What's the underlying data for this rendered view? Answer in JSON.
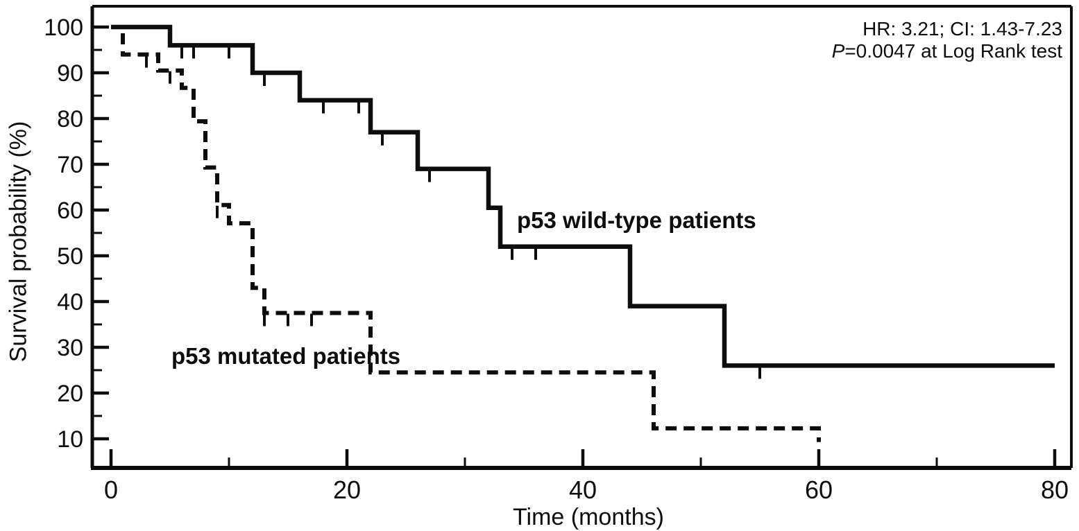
{
  "figure": {
    "background_color": "#ffffff",
    "ink_color": "#0d0d0d",
    "annotation": {
      "line1": "HR: 3.21; CI: 1.43-7.23",
      "p_italic": "P",
      "p_rest": "=0.0047 at Log Rank test"
    }
  },
  "chart_data": {
    "type": "line",
    "subtype": "kaplan_meier_step_survival",
    "title": "",
    "xlabel": "Time (months)",
    "ylabel": "Survival probability (%)",
    "xlim": [
      0,
      80
    ],
    "ylim": [
      4,
      102
    ],
    "grid": false,
    "legend_position": "inline-curve-labels",
    "x_major_ticks": [
      0,
      20,
      40,
      60,
      80
    ],
    "x_minor_ticks": [
      10,
      30,
      50,
      70
    ],
    "y_major_ticks": [
      100,
      90,
      80,
      70,
      60,
      50,
      40,
      30,
      20,
      10
    ],
    "y_minor_ticks": [
      95,
      85,
      75,
      65,
      55,
      45,
      35,
      25,
      15
    ],
    "series": [
      {
        "name": "p53 wild-type patients",
        "line_style": "solid",
        "color": "#0d0d0d",
        "steps_time_survival": [
          [
            0,
            100
          ],
          [
            5,
            96
          ],
          [
            12,
            90
          ],
          [
            16,
            84
          ],
          [
            22,
            77
          ],
          [
            26,
            69
          ],
          [
            32,
            60.5
          ],
          [
            33,
            52
          ],
          [
            44,
            39
          ],
          [
            52,
            26
          ]
        ],
        "end_time": 80,
        "end_survival": 26,
        "censor_marks_time_survival": [
          [
            6,
            96
          ],
          [
            7,
            96
          ],
          [
            10,
            96
          ],
          [
            13,
            90
          ],
          [
            18,
            84
          ],
          [
            21,
            84
          ],
          [
            23,
            77
          ],
          [
            27,
            69
          ],
          [
            34,
            52
          ],
          [
            36,
            52
          ],
          [
            55,
            26
          ]
        ]
      },
      {
        "name": "p53 mutated patients",
        "line_style": "dashed",
        "color": "#0d0d0d",
        "steps_time_survival": [
          [
            0,
            100
          ],
          [
            1,
            94
          ],
          [
            4,
            90.5
          ],
          [
            6,
            86.7
          ],
          [
            7,
            79.4
          ],
          [
            8,
            69.3
          ],
          [
            9,
            61.1
          ],
          [
            10,
            57.1
          ],
          [
            12,
            43
          ],
          [
            13,
            37.5
          ],
          [
            22,
            24.5
          ],
          [
            46,
            12.3
          ],
          [
            60,
            9.3
          ]
        ],
        "end_time": 60,
        "end_survival": 9.3,
        "censor_marks_time_survival": [
          [
            3,
            94
          ],
          [
            5,
            90.5
          ],
          [
            9,
            61.1
          ],
          [
            13,
            37.5
          ],
          [
            15,
            37.5
          ],
          [
            17,
            37.5
          ]
        ]
      }
    ],
    "annotations": [
      "HR: 3.21; CI: 1.43-7.23",
      "P=0.0047 at Log Rank test"
    ]
  }
}
